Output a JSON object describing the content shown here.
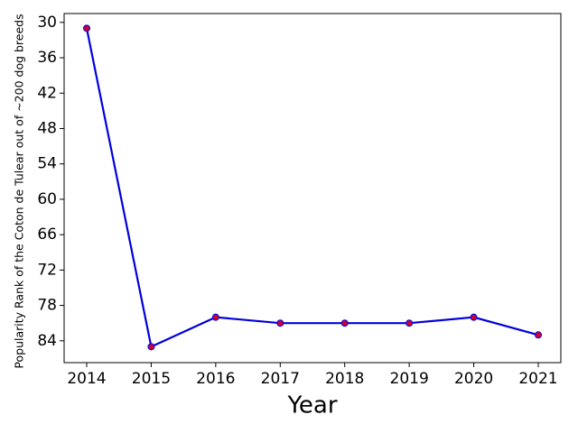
{
  "chart_data": {
    "type": "line",
    "xlabel": "Year",
    "ylabel": "Popularity Rank of the Coton de Tulear out of ~200 dog breeds",
    "x": [
      2014,
      2015,
      2016,
      2017,
      2018,
      2019,
      2020,
      2021
    ],
    "series": [
      {
        "name": "Rank",
        "color": "#0000dd",
        "marker_color": "#cc0033",
        "values": [
          31,
          85,
          80,
          81,
          81,
          81,
          80,
          83
        ]
      }
    ],
    "xlim": [
      2013.65,
      2021.35
    ],
    "xticks": [
      2014,
      2015,
      2016,
      2017,
      2018,
      2019,
      2020,
      2021
    ],
    "ylim": [
      87.7,
      28.5
    ],
    "yticks": [
      30,
      36,
      42,
      48,
      54,
      60,
      66,
      72,
      78,
      84
    ],
    "inverted_y": true,
    "grid": false
  }
}
